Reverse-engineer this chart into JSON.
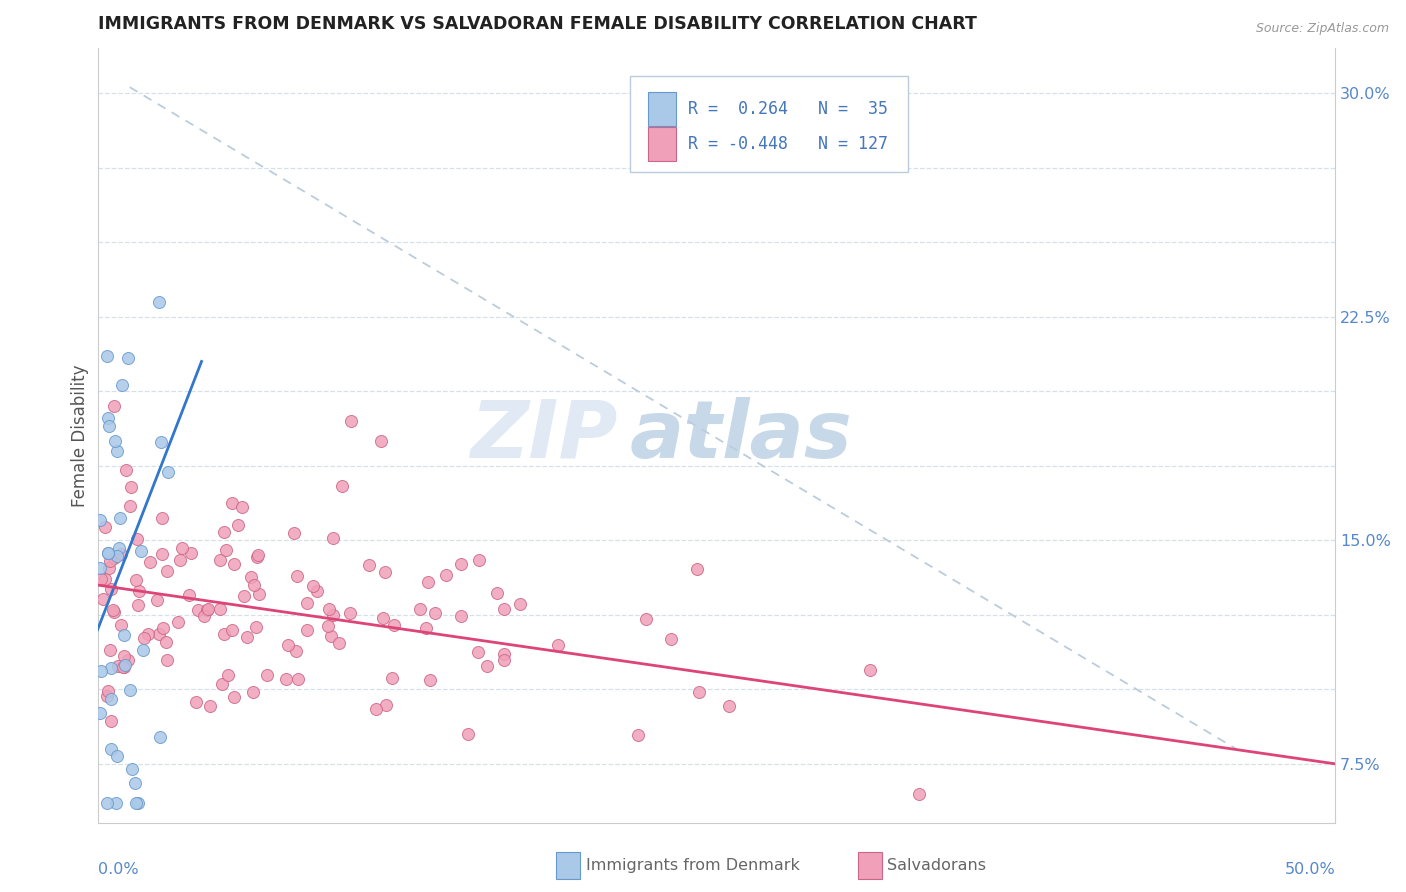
{
  "title": "IMMIGRANTS FROM DENMARK VS SALVADORAN FEMALE DISABILITY CORRELATION CHART",
  "source_text": "Source: ZipAtlas.com",
  "ylabel": "Female Disability",
  "xlim": [
    0.0,
    0.5
  ],
  "ylim": [
    0.055,
    0.315
  ],
  "watermark_zip": "ZIP",
  "watermark_atlas": "atlas",
  "denmark_color": "#aac8e8",
  "denmark_edge": "#6699cc",
  "salvador_color": "#f0a0b8",
  "salvador_edge": "#cc6688",
  "trend_denmark_color": "#3377cc",
  "trend_salvador_color": "#dd4477",
  "dashed_line_color": "#bbccdd",
  "denmark_N": 35,
  "salvador_N": 127,
  "y_ticks": [
    0.075,
    0.1,
    0.125,
    0.15,
    0.175,
    0.2,
    0.225,
    0.25,
    0.275,
    0.3
  ],
  "y_tick_labels": [
    "7.5%",
    "",
    "",
    "15.0%",
    "",
    "",
    "22.5%",
    "",
    "",
    "30.0%"
  ],
  "axis_label_color": "#5588cc",
  "grid_color": "#d0dde8",
  "title_color": "#222222",
  "source_color": "#999999",
  "ylabel_color": "#555555",
  "legend_text_color": "#4477bb",
  "bottom_label_color": "#666666",
  "dot_size": 75
}
